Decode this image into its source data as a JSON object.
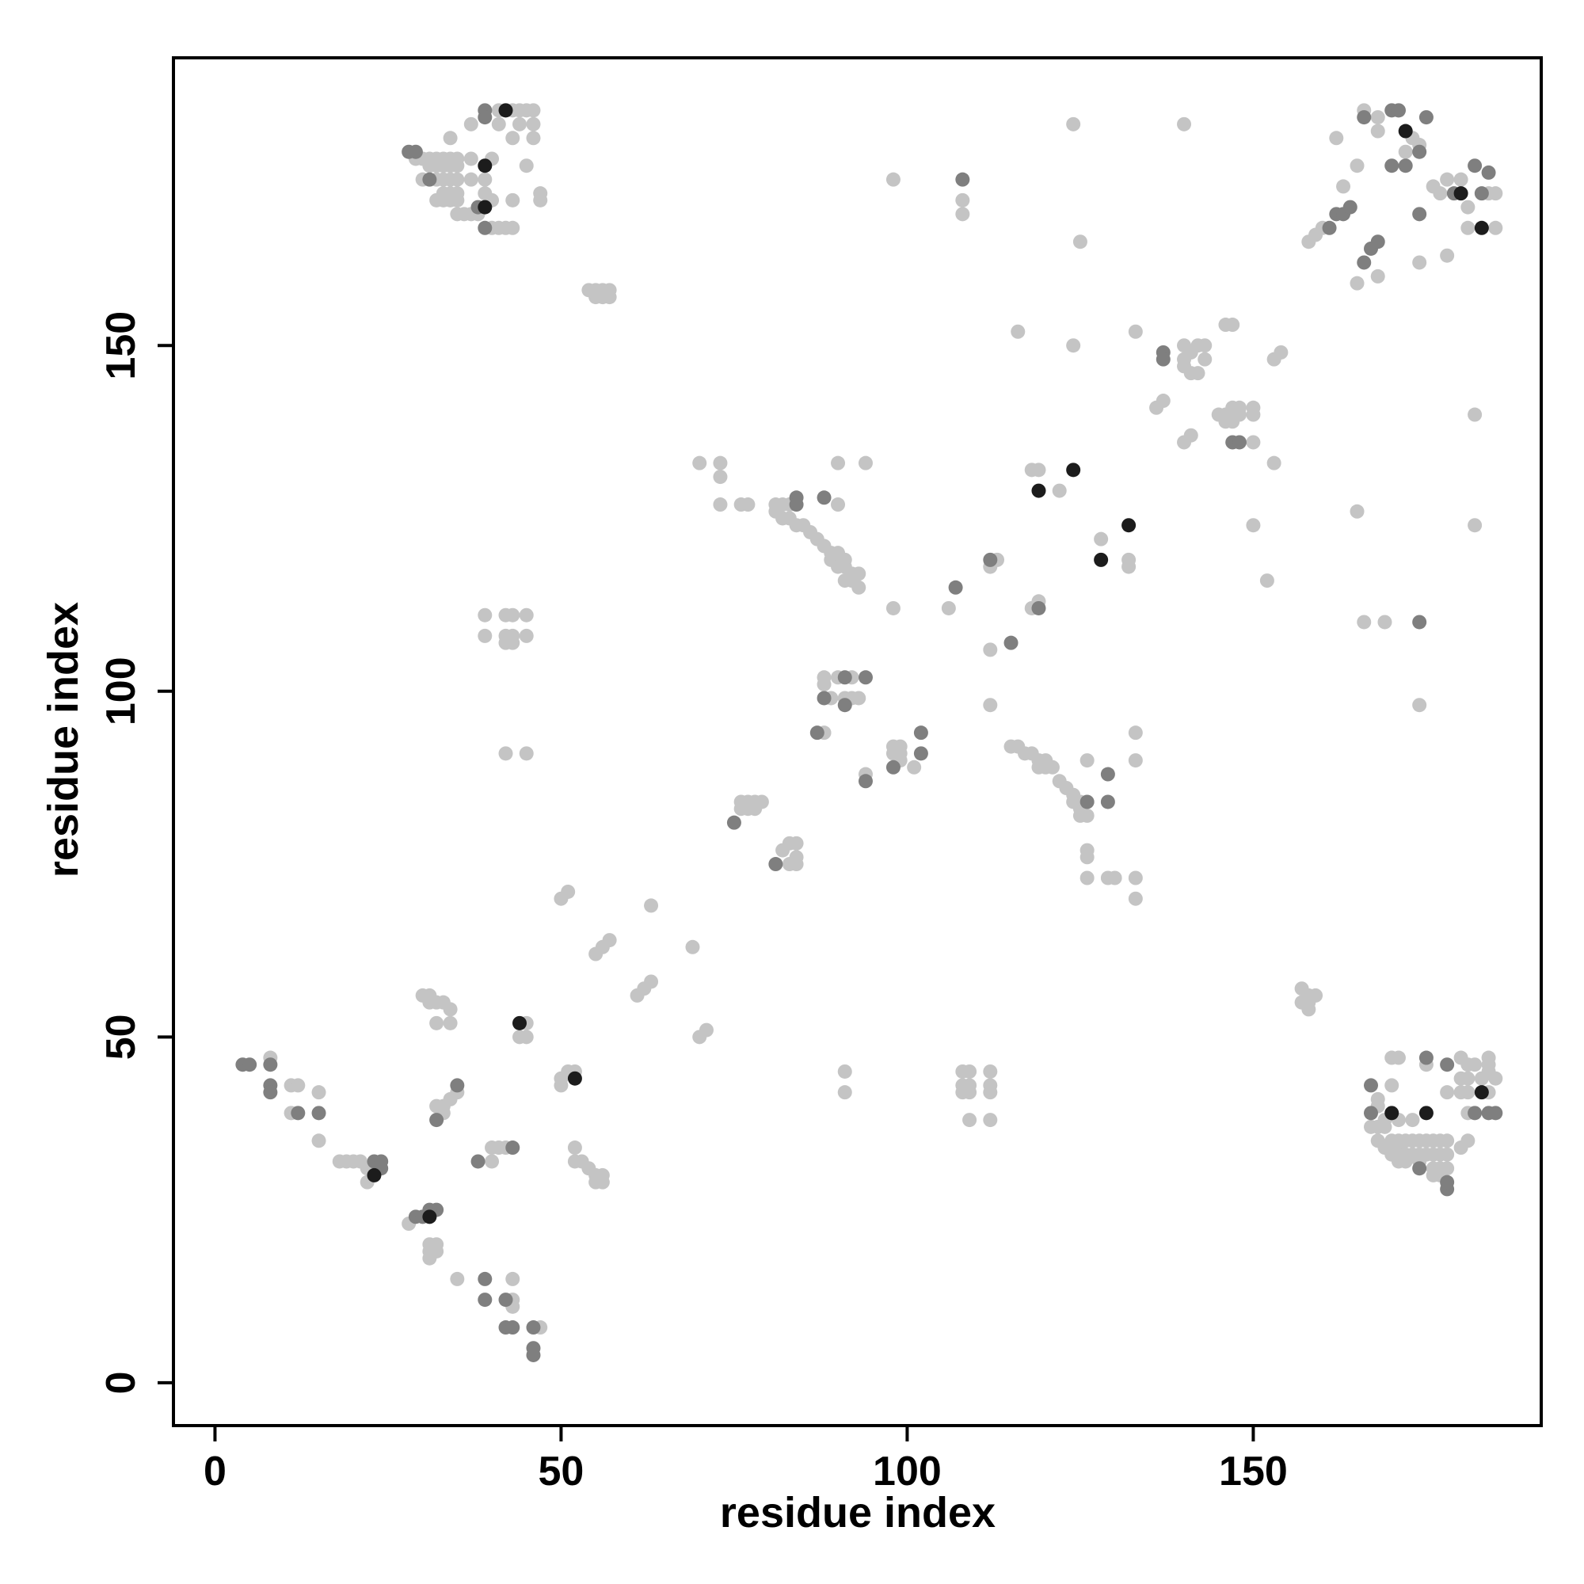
{
  "chart_data": {
    "type": "scatter",
    "xlabel": "residue index",
    "ylabel": "residue index",
    "xlim": [
      -6,
      191.6
    ],
    "ylim": [
      -6.2,
      191.6
    ],
    "xticks": [
      0,
      50,
      100,
      150
    ],
    "yticks": [
      0,
      50,
      100,
      150
    ],
    "series": [
      {
        "color": "#c4c4c4",
        "x": [
          41,
          42,
          43,
          44,
          45,
          46,
          37,
          41,
          44,
          46,
          34,
          43,
          46,
          29,
          30,
          31,
          32,
          33,
          34,
          35,
          37,
          40,
          31,
          32,
          33,
          34,
          35,
          45,
          30,
          32,
          33,
          34,
          35,
          37,
          39,
          33,
          34,
          35,
          39,
          47,
          32,
          33,
          34,
          35,
          40,
          43,
          47,
          35,
          36,
          37,
          38,
          40,
          41,
          42,
          43,
          166,
          168,
          171,
          162,
          168,
          173,
          172,
          174,
          165,
          163,
          176,
          177,
          178,
          180,
          184,
          185,
          185,
          181,
          181,
          168,
          165,
          174,
          178,
          158,
          159,
          160,
          98,
          108,
          108,
          124,
          140,
          125,
          54,
          55,
          56,
          57,
          55,
          56,
          57,
          116,
          124,
          133,
          140,
          140,
          141,
          142,
          143,
          141,
          142,
          143,
          140,
          146,
          147,
          153,
          154,
          136,
          137,
          140,
          141,
          145,
          146,
          147,
          148,
          147,
          146,
          148,
          150,
          150,
          150,
          153,
          150,
          152,
          182,
          182,
          165,
          166,
          169,
          174,
          70,
          73,
          73,
          73,
          76,
          77,
          81,
          82,
          83,
          90,
          94,
          90,
          81,
          82,
          83,
          84,
          85,
          86,
          87,
          88,
          89,
          90,
          91,
          89,
          90,
          91,
          92,
          93,
          91,
          92,
          93,
          98,
          106,
          113,
          112,
          112,
          112,
          118,
          119,
          118,
          119,
          122,
          128,
          132,
          132,
          88,
          88,
          90,
          92,
          89,
          91,
          92,
          93,
          88,
          98,
          98,
          99,
          99,
          99,
          101,
          94,
          133,
          133,
          126,
          115,
          116,
          117,
          118,
          119,
          120,
          121,
          119,
          120,
          122,
          123,
          124,
          125,
          124,
          125,
          126,
          125,
          126,
          126,
          126,
          129,
          130,
          133,
          133,
          76,
          77,
          78,
          79,
          76,
          77,
          78,
          82,
          83,
          84,
          84,
          83,
          84,
          50,
          51,
          63,
          55,
          56,
          57,
          69,
          61,
          62,
          63,
          70,
          71,
          157,
          158,
          157,
          158,
          159,
          158,
          39,
          42,
          43,
          45,
          39,
          42,
          43,
          45,
          42,
          43,
          42,
          45,
          91,
          91,
          108,
          109,
          112,
          108,
          109,
          112,
          108,
          109,
          112,
          109,
          112,
          8,
          11,
          12,
          15,
          11,
          15,
          18,
          19,
          20,
          21,
          22,
          22,
          28,
          31,
          32,
          31,
          31,
          32,
          35,
          43,
          43,
          43,
          47,
          30,
          31,
          32,
          33,
          34,
          31,
          32,
          34,
          45,
          44,
          45,
          32,
          33,
          34,
          33,
          35,
          40,
          41,
          42,
          40,
          50,
          51,
          52,
          50,
          52,
          53,
          54,
          55,
          56,
          55,
          56,
          52,
          170,
          171,
          175,
          180,
          181,
          182,
          184,
          184,
          184,
          183,
          185,
          180,
          181,
          170,
          178,
          180,
          181,
          184,
          168,
          168,
          169,
          171,
          173,
          167,
          168,
          169,
          170,
          171,
          172,
          173,
          174,
          175,
          176,
          177,
          178,
          180,
          168,
          169,
          170,
          171,
          172,
          173,
          174,
          175,
          176,
          177,
          178,
          170,
          171,
          172,
          174,
          176,
          177,
          178,
          176,
          177,
          181,
          181
        ],
        "y": [
          184,
          184,
          184,
          184,
          184,
          184,
          182,
          182,
          182,
          182,
          180,
          180,
          180,
          177,
          177,
          177,
          177,
          177,
          177,
          177,
          177,
          177,
          176,
          176,
          176,
          176,
          176,
          176,
          174,
          174,
          174,
          174,
          174,
          174,
          174,
          172,
          172,
          172,
          172,
          172,
          171,
          171,
          171,
          171,
          171,
          171,
          171,
          169,
          169,
          169,
          169,
          167,
          167,
          167,
          167,
          184,
          183,
          184,
          180,
          181,
          180,
          178,
          179,
          176,
          173,
          173,
          172,
          174,
          174,
          172,
          172,
          167,
          167,
          170,
          160,
          159,
          162,
          163,
          165,
          166,
          167,
          174,
          171,
          169,
          182,
          182,
          165,
          158,
          158,
          158,
          158,
          157,
          157,
          157,
          152,
          150,
          152,
          147,
          148,
          149,
          150,
          150,
          146,
          146,
          148,
          150,
          153,
          153,
          148,
          149,
          141,
          142,
          136,
          137,
          140,
          140,
          141,
          141,
          139,
          139,
          140,
          141,
          140,
          136,
          133,
          124,
          116,
          140,
          124,
          126,
          110,
          110,
          98,
          133,
          133,
          131,
          127,
          127,
          127,
          127,
          127,
          127,
          133,
          133,
          127,
          126,
          125,
          125,
          124,
          124,
          123,
          122,
          121,
          120,
          120,
          119,
          119,
          118,
          118,
          117,
          117,
          116,
          116,
          115,
          112,
          112,
          119,
          118,
          106,
          98,
          112,
          113,
          132,
          132,
          129,
          122,
          119,
          118,
          102,
          101,
          102,
          102,
          99,
          99,
          99,
          99,
          94,
          92,
          91,
          91,
          92,
          90,
          89,
          88,
          94,
          90,
          90,
          92,
          92,
          91,
          91,
          90,
          89,
          89,
          89,
          90,
          87,
          86,
          85,
          84,
          84,
          83,
          82,
          82,
          77,
          76,
          73,
          73,
          73,
          73,
          70,
          84,
          84,
          84,
          84,
          83,
          83,
          83,
          77,
          78,
          78,
          76,
          75,
          75,
          70,
          71,
          69,
          62,
          63,
          64,
          63,
          56,
          57,
          58,
          50,
          51,
          57,
          56,
          55,
          55,
          56,
          54,
          111,
          111,
          111,
          111,
          108,
          108,
          108,
          108,
          107,
          107,
          91,
          91,
          45,
          42,
          45,
          45,
          45,
          43,
          43,
          43,
          42,
          42,
          42,
          38,
          38,
          47,
          43,
          43,
          42,
          39,
          35,
          32,
          32,
          32,
          32,
          31,
          29,
          23,
          20,
          20,
          19,
          18,
          19,
          15,
          15,
          12,
          11,
          8,
          56,
          56,
          55,
          55,
          54,
          55,
          52,
          52,
          52,
          50,
          50,
          40,
          40,
          41,
          39,
          42,
          34,
          34,
          34,
          32,
          44,
          45,
          45,
          43,
          34,
          32,
          31,
          30,
          30,
          29,
          29,
          32,
          47,
          47,
          46,
          47,
          46,
          46,
          47,
          46,
          45,
          44,
          44,
          44,
          44,
          43,
          42,
          42,
          42,
          42,
          41,
          40,
          38,
          38,
          38,
          37,
          37,
          37,
          35,
          35,
          35,
          35,
          35,
          35,
          35,
          35,
          35,
          34,
          35,
          34,
          34,
          34,
          33,
          33,
          33,
          33,
          33,
          33,
          33,
          33,
          32,
          32,
          32,
          31,
          31,
          31,
          30,
          30,
          39,
          35
        ]
      },
      {
        "color": "#7f7f7f",
        "x": [
          39,
          39,
          28,
          29,
          31,
          38,
          39,
          170,
          171,
          175,
          166,
          170,
          172,
          174,
          182,
          184,
          183,
          179,
          174,
          167,
          168,
          162,
          163,
          164,
          161,
          166,
          108,
          137,
          137,
          147,
          148,
          174,
          84,
          88,
          84,
          107,
          112,
          115,
          119,
          91,
          94,
          88,
          91,
          87,
          98,
          102,
          102,
          94,
          129,
          126,
          129,
          75,
          81,
          4,
          5,
          8,
          8,
          8,
          12,
          15,
          23,
          24,
          24,
          29,
          30,
          32,
          31,
          39,
          39,
          42,
          42,
          43,
          46,
          46,
          46,
          35,
          32,
          38,
          43,
          167,
          167,
          178,
          182,
          184,
          185,
          178,
          178,
          174,
          175
        ],
        "y": [
          184,
          183,
          178,
          178,
          174,
          170,
          167,
          184,
          184,
          183,
          183,
          176,
          176,
          178,
          176,
          175,
          172,
          172,
          169,
          164,
          165,
          169,
          169,
          170,
          167,
          162,
          174,
          149,
          148,
          136,
          136,
          110,
          128,
          128,
          127,
          115,
          119,
          107,
          112,
          102,
          102,
          99,
          98,
          94,
          89,
          91,
          94,
          87,
          88,
          84,
          84,
          81,
          75,
          46,
          46,
          46,
          43,
          42,
          39,
          39,
          32,
          32,
          31,
          24,
          24,
          25,
          25,
          15,
          12,
          12,
          8,
          8,
          8,
          5,
          4,
          43,
          38,
          32,
          34,
          43,
          39,
          46,
          39,
          39,
          39,
          28,
          29,
          31,
          47
        ]
      },
      {
        "color": "#1c1c1c",
        "x": [
          39,
          42,
          39,
          172,
          180,
          183,
          119,
          124,
          128,
          132,
          23,
          31,
          44,
          52,
          170,
          175,
          183
        ],
        "y": [
          176,
          184,
          170,
          181,
          172,
          167,
          129,
          132,
          119,
          124,
          30,
          24,
          52,
          44,
          39,
          39,
          42
        ]
      }
    ]
  }
}
